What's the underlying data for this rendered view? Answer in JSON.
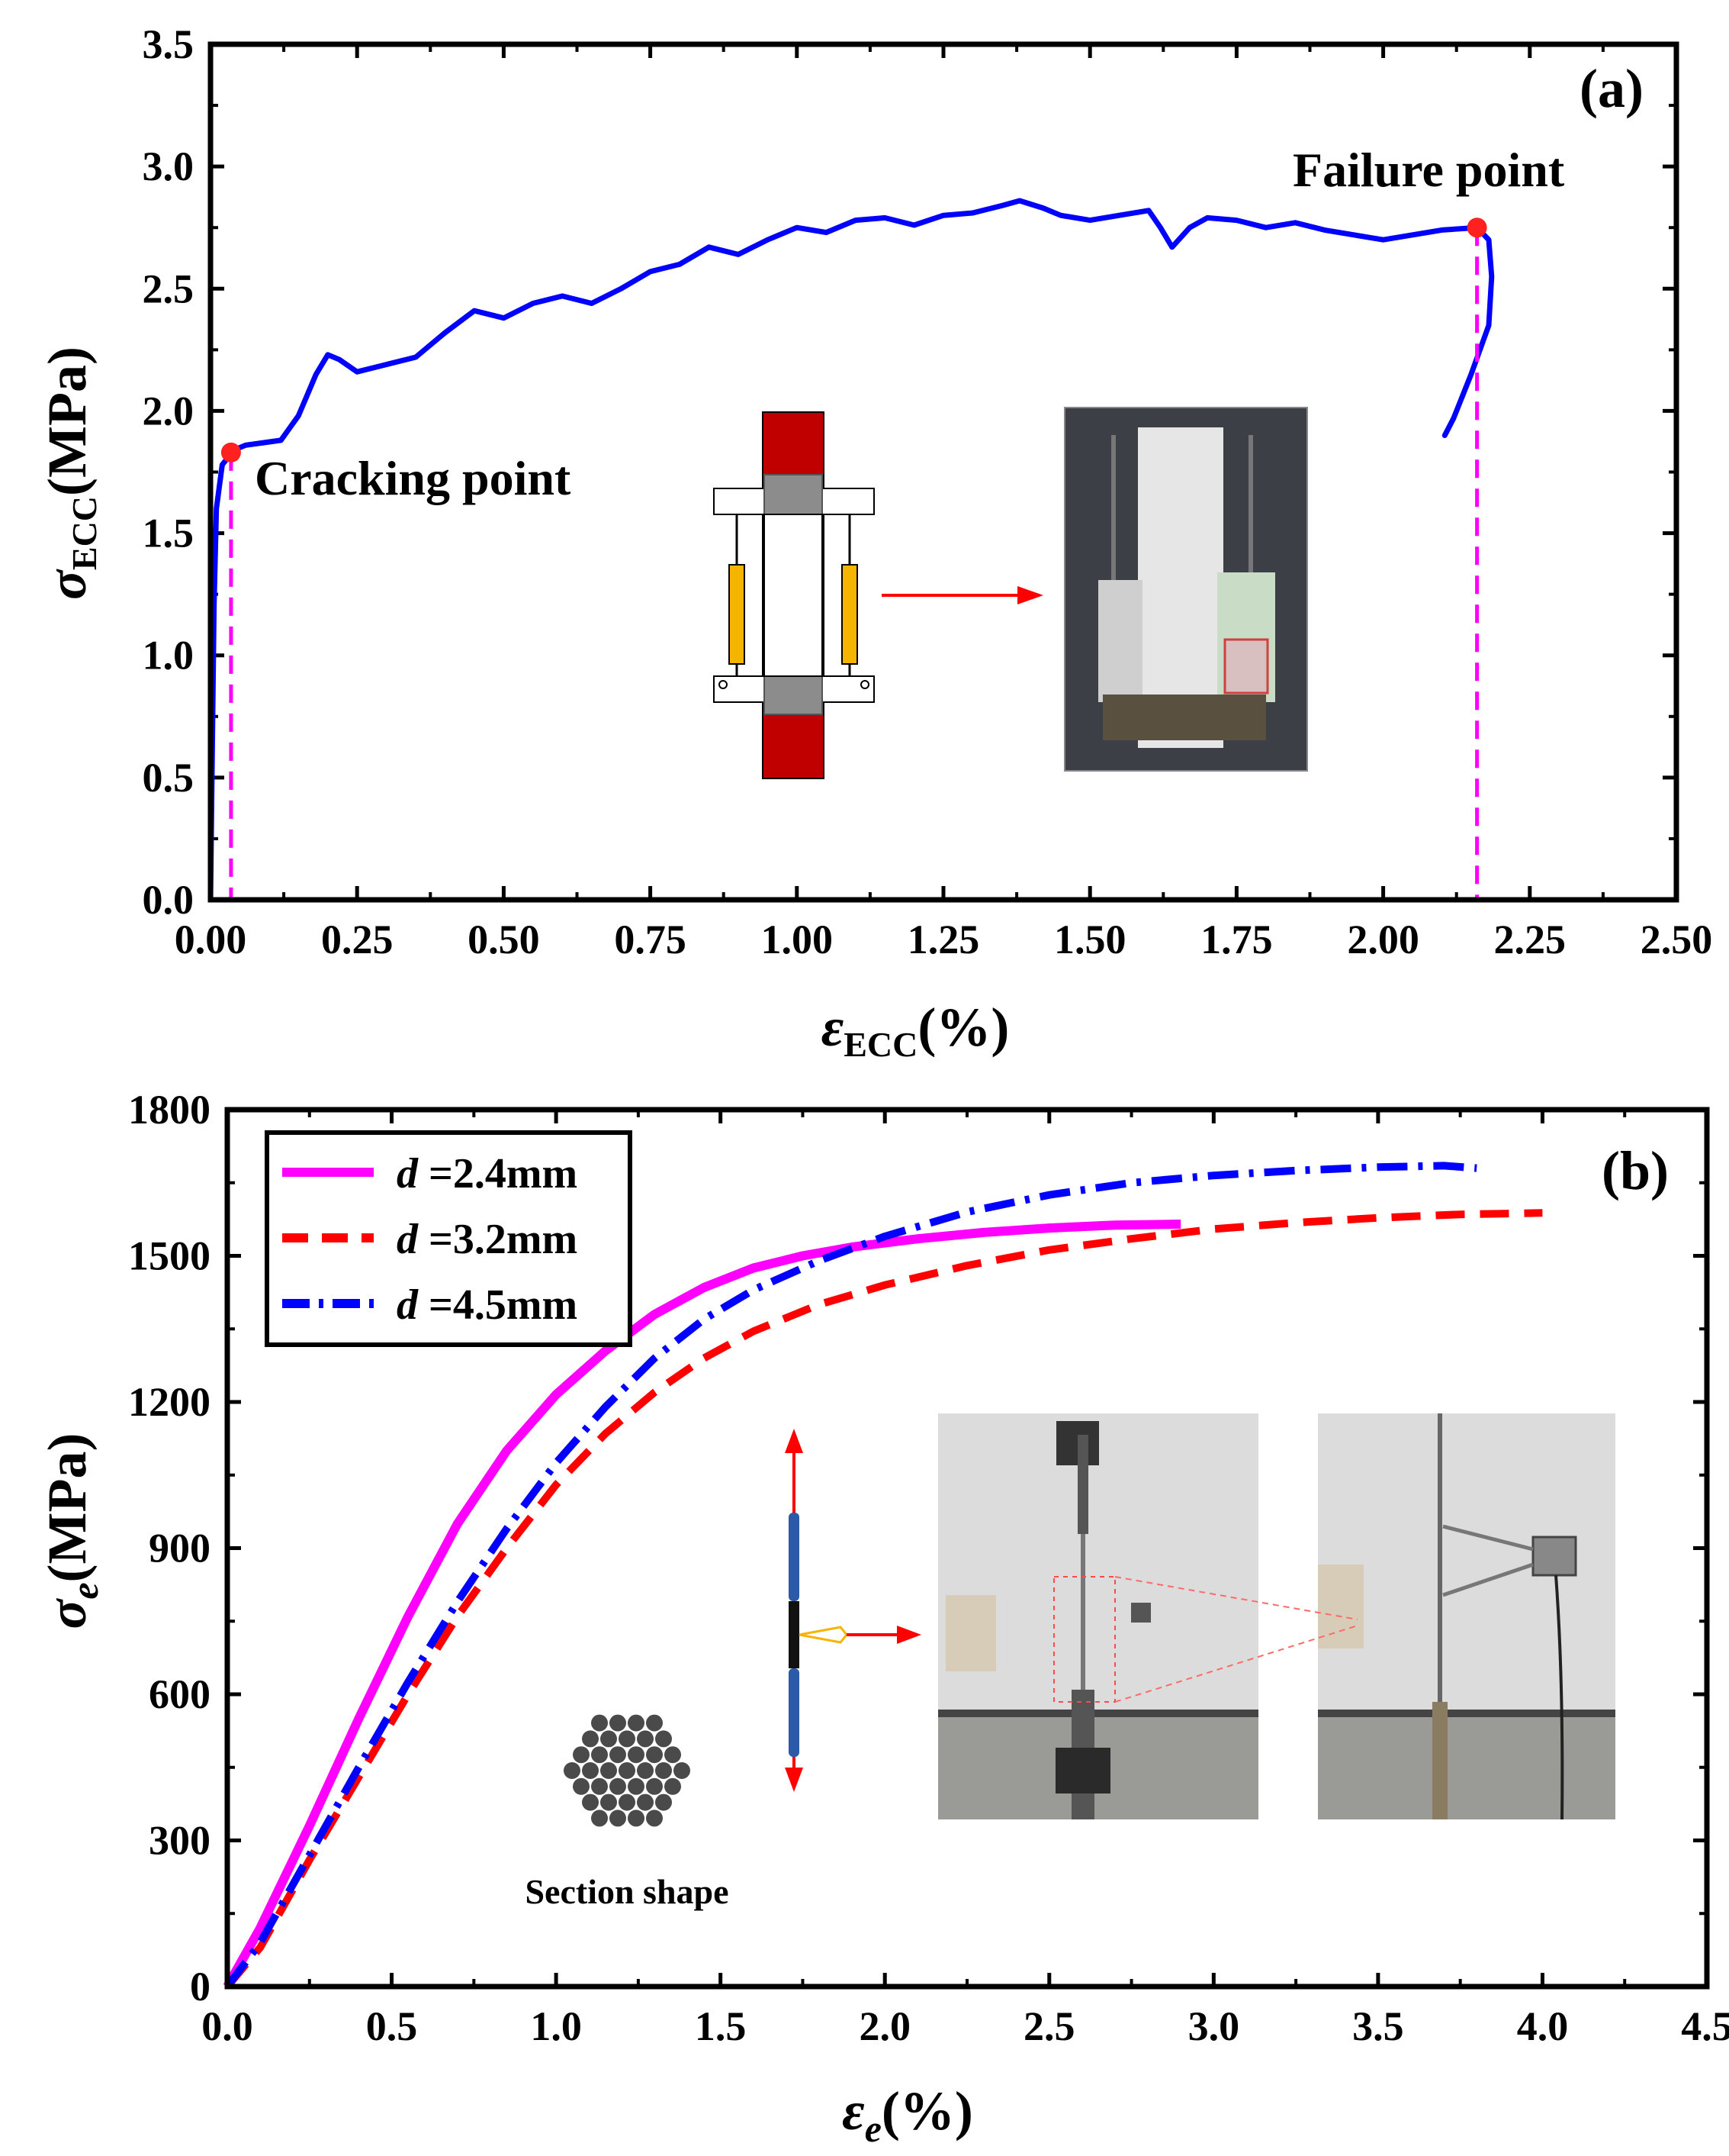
{
  "chart_data": [
    {
      "panel": "(a)",
      "type": "line",
      "xlabel": {
        "symbol": "ε",
        "sub": "ECC",
        "unit": "(%)"
      },
      "ylabel": {
        "symbol": "σ",
        "sub": "ECC",
        "unit": "(MPa)"
      },
      "xlim": [
        0,
        2.5
      ],
      "ylim": [
        0,
        3.5
      ],
      "x_ticks": [
        "0.00",
        "0.25",
        "0.50",
        "0.75",
        "1.00",
        "1.25",
        "1.50",
        "1.75",
        "2.00",
        "2.25",
        "2.50"
      ],
      "y_ticks": [
        "0.0",
        "0.5",
        "1.0",
        "1.5",
        "2.0",
        "2.5",
        "3.0",
        "3.5"
      ],
      "series": [
        {
          "color": "#0000ff",
          "points": [
            [
              0.0,
              0.0
            ],
            [
              0.003,
              0.6
            ],
            [
              0.006,
              1.2
            ],
            [
              0.01,
              1.6
            ],
            [
              0.02,
              1.78
            ],
            [
              0.04,
              1.84
            ],
            [
              0.06,
              1.86
            ],
            [
              0.09,
              1.87
            ],
            [
              0.12,
              1.88
            ],
            [
              0.15,
              1.98
            ],
            [
              0.18,
              2.15
            ],
            [
              0.2,
              2.23
            ],
            [
              0.22,
              2.21
            ],
            [
              0.25,
              2.16
            ],
            [
              0.3,
              2.19
            ],
            [
              0.35,
              2.22
            ],
            [
              0.4,
              2.32
            ],
            [
              0.45,
              2.41
            ],
            [
              0.5,
              2.38
            ],
            [
              0.55,
              2.44
            ],
            [
              0.6,
              2.47
            ],
            [
              0.65,
              2.44
            ],
            [
              0.7,
              2.5
            ],
            [
              0.75,
              2.57
            ],
            [
              0.8,
              2.6
            ],
            [
              0.85,
              2.67
            ],
            [
              0.9,
              2.64
            ],
            [
              0.95,
              2.7
            ],
            [
              1.0,
              2.75
            ],
            [
              1.05,
              2.73
            ],
            [
              1.1,
              2.78
            ],
            [
              1.15,
              2.79
            ],
            [
              1.2,
              2.76
            ],
            [
              1.25,
              2.8
            ],
            [
              1.3,
              2.81
            ],
            [
              1.35,
              2.84
            ],
            [
              1.38,
              2.86
            ],
            [
              1.42,
              2.83
            ],
            [
              1.45,
              2.8
            ],
            [
              1.5,
              2.78
            ],
            [
              1.55,
              2.8
            ],
            [
              1.6,
              2.82
            ],
            [
              1.62,
              2.75
            ],
            [
              1.64,
              2.67
            ],
            [
              1.67,
              2.75
            ],
            [
              1.7,
              2.79
            ],
            [
              1.75,
              2.78
            ],
            [
              1.8,
              2.75
            ],
            [
              1.85,
              2.77
            ],
            [
              1.9,
              2.74
            ],
            [
              1.95,
              2.72
            ],
            [
              2.0,
              2.7
            ],
            [
              2.05,
              2.72
            ],
            [
              2.1,
              2.74
            ],
            [
              2.16,
              2.75
            ],
            [
              2.18,
              2.7
            ],
            [
              2.185,
              2.55
            ],
            [
              2.18,
              2.35
            ],
            [
              2.15,
              2.15
            ],
            [
              2.12,
              1.97
            ],
            [
              2.105,
              1.9
            ]
          ]
        }
      ],
      "markers": [
        {
          "label": "Cracking point",
          "x": 0.035,
          "y": 1.83
        },
        {
          "label": "Failure point",
          "x": 2.16,
          "y": 2.75
        }
      ],
      "inset_caption": ""
    },
    {
      "panel": "(b)",
      "type": "line",
      "xlabel": {
        "symbol": "ε",
        "sub": "e",
        "unit": "(%)"
      },
      "ylabel": {
        "symbol": "σ",
        "sub": "e",
        "unit": "(MPa)"
      },
      "xlim": [
        0,
        4.5
      ],
      "ylim": [
        0,
        1800
      ],
      "x_ticks": [
        "0.0",
        "0.5",
        "1.0",
        "1.5",
        "2.0",
        "2.5",
        "3.0",
        "3.5",
        "4.0",
        "4.5"
      ],
      "y_ticks": [
        "0",
        "300",
        "600",
        "900",
        "1200",
        "1500",
        "1800"
      ],
      "legend_position": "top-left",
      "series": [
        {
          "name_var": "d",
          "name_value": " =2.4mm",
          "color": "#ff00ff",
          "style": "solid",
          "points": [
            [
              0.0,
              0
            ],
            [
              0.1,
              120
            ],
            [
              0.25,
              330
            ],
            [
              0.4,
              550
            ],
            [
              0.55,
              760
            ],
            [
              0.7,
              950
            ],
            [
              0.85,
              1100
            ],
            [
              1.0,
              1215
            ],
            [
              1.15,
              1305
            ],
            [
              1.3,
              1380
            ],
            [
              1.45,
              1435
            ],
            [
              1.6,
              1475
            ],
            [
              1.75,
              1500
            ],
            [
              1.9,
              1518
            ],
            [
              2.1,
              1535
            ],
            [
              2.3,
              1548
            ],
            [
              2.5,
              1557
            ],
            [
              2.7,
              1563
            ],
            [
              2.9,
              1565
            ]
          ]
        },
        {
          "name_var": "d",
          "name_value": " =3.2mm",
          "color": "#ff0000",
          "style": "dash",
          "points": [
            [
              0.0,
              0
            ],
            [
              0.1,
              80
            ],
            [
              0.25,
              260
            ],
            [
              0.4,
              430
            ],
            [
              0.55,
              600
            ],
            [
              0.7,
              760
            ],
            [
              0.85,
              900
            ],
            [
              1.0,
              1030
            ],
            [
              1.15,
              1135
            ],
            [
              1.3,
              1220
            ],
            [
              1.45,
              1290
            ],
            [
              1.6,
              1345
            ],
            [
              1.8,
              1400
            ],
            [
              2.0,
              1440
            ],
            [
              2.25,
              1480
            ],
            [
              2.5,
              1512
            ],
            [
              2.75,
              1535
            ],
            [
              3.0,
              1555
            ],
            [
              3.25,
              1568
            ],
            [
              3.5,
              1578
            ],
            [
              3.75,
              1585
            ],
            [
              4.0,
              1588
            ]
          ]
        },
        {
          "name_var": "d",
          "name_value": " =4.5mm",
          "color": "#0000ff",
          "style": "dashdot",
          "points": [
            [
              0.0,
              0
            ],
            [
              0.1,
              90
            ],
            [
              0.25,
              270
            ],
            [
              0.4,
              450
            ],
            [
              0.55,
              625
            ],
            [
              0.7,
              790
            ],
            [
              0.85,
              940
            ],
            [
              1.0,
              1075
            ],
            [
              1.15,
              1190
            ],
            [
              1.3,
              1290
            ],
            [
              1.45,
              1370
            ],
            [
              1.6,
              1430
            ],
            [
              1.8,
              1490
            ],
            [
              2.0,
              1540
            ],
            [
              2.25,
              1590
            ],
            [
              2.5,
              1625
            ],
            [
              2.75,
              1650
            ],
            [
              3.0,
              1665
            ],
            [
              3.25,
              1675
            ],
            [
              3.5,
              1682
            ],
            [
              3.7,
              1685
            ],
            [
              3.8,
              1680
            ]
          ]
        }
      ],
      "inset_caption": "Section shape"
    }
  ]
}
